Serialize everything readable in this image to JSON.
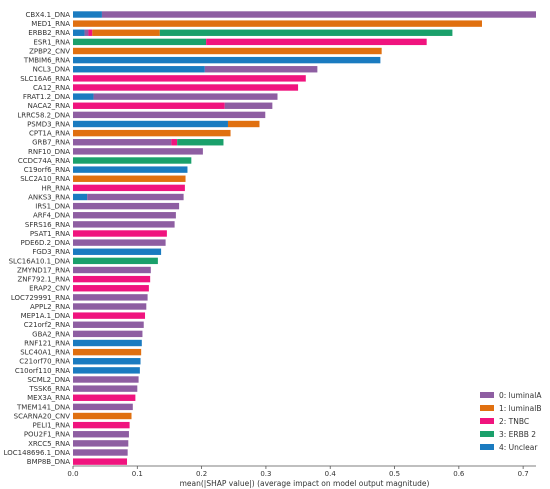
{
  "chart_data": {
    "type": "bar",
    "orientation": "horizontal",
    "stacked": true,
    "xlabel": "mean(|SHAP value|) (average impact on model output magnitude)",
    "ylabel": "",
    "xlim": [
      0,
      0.72
    ],
    "xticks": [
      "0.0",
      "0.1",
      "0.2",
      "0.3",
      "0.4",
      "0.5",
      "0.6",
      "0.7"
    ],
    "grid": false,
    "legend_position": "bottom-right",
    "legend": [
      {
        "key": "4",
        "label": "0: luminalA",
        "color": "#8e5ea2"
      },
      {
        "key": "1",
        "label": "1: luminalB",
        "color": "#e07010"
      },
      {
        "key": "2",
        "label": "2: TNBC",
        "color": "#f0147e"
      },
      {
        "key": "3",
        "label": "3: ERBB 2",
        "color": "#1aa06b"
      },
      {
        "key": "0",
        "label": "4: Unclear",
        "color": "#1a7bc0"
      }
    ],
    "bars": [
      {
        "label": "CBX4.1_DNA",
        "segments": [
          [
            "0",
            0.045
          ],
          [
            "4",
            0.675
          ]
        ]
      },
      {
        "label": "MED1_RNA",
        "segments": [
          [
            "1",
            0.636
          ]
        ]
      },
      {
        "label": "ERBB2_RNA",
        "segments": [
          [
            "0",
            0.018
          ],
          [
            "4",
            0.006
          ],
          [
            "2",
            0.006
          ],
          [
            "1",
            0.105
          ],
          [
            "3",
            0.455
          ]
        ]
      },
      {
        "label": "ESR1_RNA",
        "segments": [
          [
            "3",
            0.207
          ],
          [
            "2",
            0.343
          ]
        ]
      },
      {
        "label": "ZPBP2_CNV",
        "segments": [
          [
            "1",
            0.48
          ]
        ]
      },
      {
        "label": "TMBIM6_RNA",
        "segments": [
          [
            "0",
            0.478
          ]
        ]
      },
      {
        "label": "NCL3_DNA",
        "segments": [
          [
            "0",
            0.205
          ],
          [
            "4",
            0.175
          ]
        ]
      },
      {
        "label": "SLC16A6_RNA",
        "segments": [
          [
            "2",
            0.362
          ]
        ]
      },
      {
        "label": "CA12_RNA",
        "segments": [
          [
            "2",
            0.35
          ]
        ]
      },
      {
        "label": "FRAT1.2_DNA",
        "segments": [
          [
            "0",
            0.032
          ],
          [
            "4",
            0.286
          ]
        ]
      },
      {
        "label": "NACA2_RNA",
        "segments": [
          [
            "2",
            0.236
          ],
          [
            "4",
            0.074
          ]
        ]
      },
      {
        "label": "LRRC58.2_DNA",
        "segments": [
          [
            "4",
            0.299
          ]
        ]
      },
      {
        "label": "PSMD3_RNA",
        "segments": [
          [
            "0",
            0.241
          ],
          [
            "1",
            0.049
          ]
        ]
      },
      {
        "label": "CPT1A_RNA",
        "segments": [
          [
            "1",
            0.245
          ]
        ]
      },
      {
        "label": "GRB7_RNA",
        "segments": [
          [
            "4",
            0.153
          ],
          [
            "2",
            0.009
          ],
          [
            "3",
            0.072
          ]
        ]
      },
      {
        "label": "RNF10_DNA",
        "segments": [
          [
            "4",
            0.202
          ]
        ]
      },
      {
        "label": "CCDC74A_RNA",
        "segments": [
          [
            "3",
            0.184
          ]
        ]
      },
      {
        "label": "C19orf6_RNA",
        "segments": [
          [
            "0",
            0.178
          ]
        ]
      },
      {
        "label": "SLC2A10_RNA",
        "segments": [
          [
            "1",
            0.175
          ]
        ]
      },
      {
        "label": "HR_RNA",
        "segments": [
          [
            "2",
            0.174
          ]
        ]
      },
      {
        "label": "ANKS3_RNA",
        "segments": [
          [
            "0",
            0.022
          ],
          [
            "4",
            0.15
          ]
        ]
      },
      {
        "label": "IRS1_DNA",
        "segments": [
          [
            "4",
            0.165
          ]
        ]
      },
      {
        "label": "ARF4_DNA",
        "segments": [
          [
            "4",
            0.16
          ]
        ]
      },
      {
        "label": "SFRS16_RNA",
        "segments": [
          [
            "4",
            0.158
          ]
        ]
      },
      {
        "label": "PSAT1_RNA",
        "segments": [
          [
            "2",
            0.146
          ]
        ]
      },
      {
        "label": "PDE6D.2_DNA",
        "segments": [
          [
            "4",
            0.144
          ]
        ]
      },
      {
        "label": "FGD3_RNA",
        "segments": [
          [
            "0",
            0.137
          ]
        ]
      },
      {
        "label": "SLC16A10.1_DNA",
        "segments": [
          [
            "3",
            0.132
          ]
        ]
      },
      {
        "label": "ZMYND17_RNA",
        "segments": [
          [
            "4",
            0.121
          ]
        ]
      },
      {
        "label": "ZNF792.1_RNA",
        "segments": [
          [
            "2",
            0.12
          ]
        ]
      },
      {
        "label": "ERAP2_CNV",
        "segments": [
          [
            "2",
            0.118
          ]
        ]
      },
      {
        "label": "LOC729991_RNA",
        "segments": [
          [
            "4",
            0.116
          ]
        ]
      },
      {
        "label": "APPL2_RNA",
        "segments": [
          [
            "4",
            0.114
          ]
        ]
      },
      {
        "label": "MEP1A.1_DNA",
        "segments": [
          [
            "2",
            0.112
          ]
        ]
      },
      {
        "label": "C21orf2_RNA",
        "segments": [
          [
            "4",
            0.11
          ]
        ]
      },
      {
        "label": "GBA2_RNA",
        "segments": [
          [
            "4",
            0.108
          ]
        ]
      },
      {
        "label": "RNF121_RNA",
        "segments": [
          [
            "0",
            0.107
          ]
        ]
      },
      {
        "label": "SLC40A1_RNA",
        "segments": [
          [
            "1",
            0.106
          ]
        ]
      },
      {
        "label": "C21orf70_RNA",
        "segments": [
          [
            "0",
            0.105
          ]
        ]
      },
      {
        "label": "C10orf110_RNA",
        "segments": [
          [
            "0",
            0.104
          ]
        ]
      },
      {
        "label": "SCML2_DNA",
        "segments": [
          [
            "4",
            0.102
          ]
        ]
      },
      {
        "label": "TSSK6_RNA",
        "segments": [
          [
            "4",
            0.1
          ]
        ]
      },
      {
        "label": "MEX3A_RNA",
        "segments": [
          [
            "2",
            0.097
          ]
        ]
      },
      {
        "label": "TMEM141_DNA",
        "segments": [
          [
            "4",
            0.093
          ]
        ]
      },
      {
        "label": "SCARNA20_CNV",
        "segments": [
          [
            "1",
            0.091
          ]
        ]
      },
      {
        "label": "PELI1_RNA",
        "segments": [
          [
            "2",
            0.088
          ]
        ]
      },
      {
        "label": "POU2F1_RNA",
        "segments": [
          [
            "4",
            0.087
          ]
        ]
      },
      {
        "label": "XRCC5_RNA",
        "segments": [
          [
            "4",
            0.086
          ]
        ]
      },
      {
        "label": "LOC148696.1_DNA",
        "segments": [
          [
            "4",
            0.085
          ]
        ]
      },
      {
        "label": "BMP8B_DNA",
        "segments": [
          [
            "2",
            0.084
          ]
        ]
      }
    ]
  }
}
